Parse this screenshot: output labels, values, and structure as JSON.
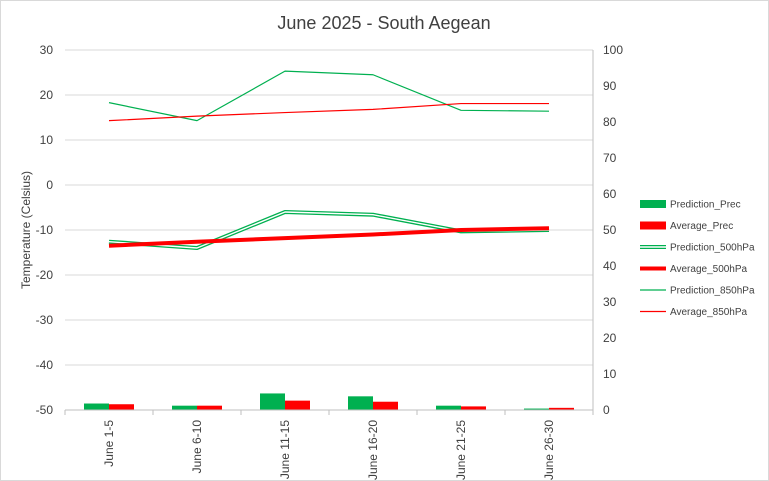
{
  "chart_data": {
    "type": "bar",
    "title": "June 2025 - South Aegean",
    "xlabel": "",
    "ylabel": "Temperature (Celsius)",
    "y2label": "",
    "categories": [
      "June 1-5",
      "June 6-10",
      "June 11-15",
      "June 16-20",
      "June 21-25",
      "June 26-30"
    ],
    "ylim": [
      -50,
      30
    ],
    "yticks": [
      30,
      20,
      10,
      0,
      -10,
      -20,
      -30,
      -40,
      -50
    ],
    "y2lim": [
      0,
      100
    ],
    "y2ticks": [
      100,
      90,
      80,
      70,
      60,
      50,
      40,
      30,
      20,
      10,
      0
    ],
    "grid": true,
    "legend_position": "right",
    "series": [
      {
        "name": "Prediction_Prec",
        "kind": "bar",
        "axis": "right",
        "color": "#00b050",
        "values": [
          1.8,
          1.2,
          4.6,
          3.8,
          1.2,
          0.4
        ]
      },
      {
        "name": "Average_Prec",
        "kind": "bar",
        "axis": "right",
        "color": "#ff0000",
        "values": [
          1.6,
          1.2,
          2.6,
          2.3,
          1.0,
          0.6
        ]
      },
      {
        "name": "Prediction_500hPa",
        "kind": "line",
        "style": "double",
        "axis": "left",
        "color": "#00b050",
        "values": [
          -12.6,
          -14,
          -6,
          -6.6,
          -10.3,
          -10
        ]
      },
      {
        "name": "Average_500hPa",
        "kind": "line",
        "style": "thick",
        "axis": "left",
        "color": "#ff0000",
        "values": [
          -13.5,
          -12.6,
          -11.8,
          -11,
          -10,
          -9.6
        ]
      },
      {
        "name": "Prediction_850hPa",
        "kind": "line",
        "style": "thin",
        "axis": "left",
        "color": "#00b050",
        "values": [
          18.3,
          14.3,
          25.3,
          24.5,
          16.6,
          16.4
        ]
      },
      {
        "name": "Average_850hPa",
        "kind": "line",
        "style": "thin",
        "axis": "left",
        "color": "#ff0000",
        "values": [
          14.3,
          15.3,
          16.1,
          16.8,
          18.1,
          18.1
        ]
      }
    ]
  }
}
